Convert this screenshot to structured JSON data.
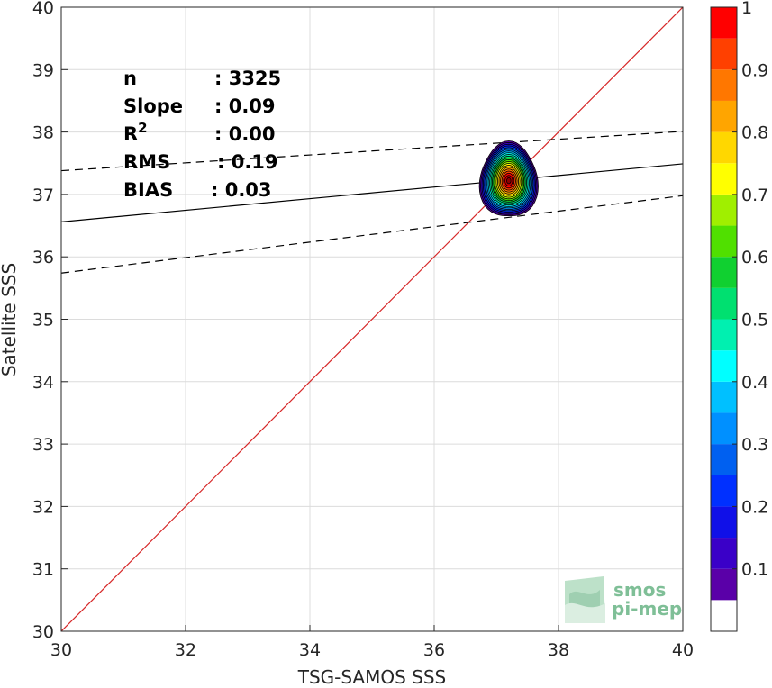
{
  "chart_data": {
    "type": "scatter",
    "subtype": "density-contour",
    "xlabel": "TSG-SAMOS SSS",
    "ylabel": "Satellite SSS",
    "xlim": [
      30,
      40
    ],
    "ylim": [
      30,
      40
    ],
    "xticks": [
      30,
      32,
      34,
      36,
      38,
      40
    ],
    "yticks": [
      30,
      31,
      32,
      33,
      34,
      35,
      36,
      37,
      38,
      39,
      40
    ],
    "grid": true,
    "stats": [
      {
        "label": "n",
        "value": ": 3325"
      },
      {
        "label": "Slope",
        "value": ": 0.09"
      },
      {
        "label": "R",
        "sup": "2",
        "value": ": 0.00"
      },
      {
        "label": "RMS",
        "value": ": 0.19"
      },
      {
        "label": "BIAS",
        "value": ": 0.03"
      }
    ],
    "identity_line": {
      "color": "#d62728",
      "points": [
        [
          30,
          30
        ],
        [
          40,
          40
        ]
      ]
    },
    "regression_line": {
      "color": "#000000",
      "points": [
        [
          30,
          36.56
        ],
        [
          40,
          37.49
        ]
      ]
    },
    "upper_bound": {
      "color": "#000000",
      "style": "dashed",
      "points": [
        [
          30,
          37.38
        ],
        [
          40,
          38.01
        ]
      ]
    },
    "lower_bound": {
      "color": "#000000",
      "style": "dashed",
      "points": [
        [
          30,
          35.74
        ],
        [
          40,
          36.98
        ]
      ]
    },
    "density_center": [
      37.2,
      37.22
    ],
    "density_extent": {
      "x": [
        36.75,
        37.65
      ],
      "y": [
        36.6,
        37.85
      ]
    },
    "colorbar": {
      "ticks": [
        0.1,
        0.2,
        0.3,
        0.4,
        0.5,
        0.6,
        0.7,
        0.8,
        0.9,
        1
      ],
      "tick_labels": [
        "0.1",
        "0.2",
        "0.3",
        "0.4",
        "0.5",
        "0.6",
        "0.7",
        "0.8",
        "0.9",
        "1"
      ],
      "range": [
        0,
        1
      ],
      "levels": [
        0,
        0.05,
        0.1,
        0.15,
        0.2,
        0.25,
        0.3,
        0.35,
        0.4,
        0.45,
        0.5,
        0.55,
        0.6,
        0.65,
        0.7,
        0.75,
        0.8,
        0.85,
        0.9,
        0.95,
        1
      ],
      "colors": [
        "#ffffff",
        "#5a00a8",
        "#3a00c8",
        "#1010e8",
        "#0030ff",
        "#0060f0",
        "#0090ff",
        "#00c0ff",
        "#00ffff",
        "#00f0b0",
        "#00e070",
        "#10d030",
        "#50e000",
        "#a0ef00",
        "#ffff00",
        "#ffd700",
        "#ffa500",
        "#ff7700",
        "#ff4000",
        "#ff0000",
        "#cc0000",
        "#8b0000"
      ]
    }
  },
  "logo": {
    "line1": "smos",
    "line2": "pi-mep"
  }
}
